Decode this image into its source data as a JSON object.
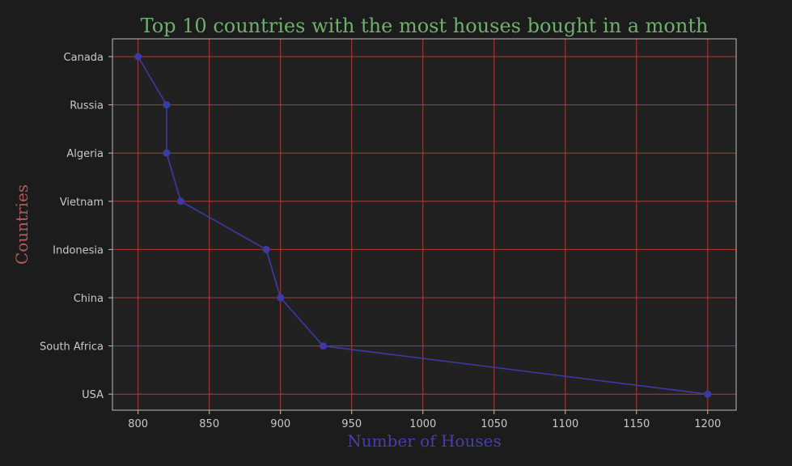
{
  "chart_data": {
    "type": "line",
    "title": "Top 10 countries with the most houses bought in a month",
    "xlabel": "Number of Houses",
    "ylabel": "Countries",
    "categories": [
      "Canada",
      "Russia",
      "Algeria",
      "Vietnam",
      "Indonesia",
      "China",
      "South Africa",
      "USA"
    ],
    "values": [
      800,
      820,
      820,
      830,
      890,
      900,
      930,
      1200
    ],
    "x_ticks": [
      800,
      850,
      900,
      950,
      1000,
      1050,
      1100,
      1150,
      1200
    ],
    "xlim": [
      782,
      1220
    ],
    "grid": true,
    "orientation": "horizontal",
    "colors": {
      "background": "#1c1c1c",
      "plot_background": "#212121",
      "frame": "#bcbcbc",
      "grid": "#b03a3a",
      "line": "#3c3aa6",
      "marker": "#3c3aa6",
      "title": "#6fae6c",
      "xlabel": "#4540a8",
      "ylabel": "#b25a5a",
      "tick_labels": "#c8c8c8"
    }
  }
}
